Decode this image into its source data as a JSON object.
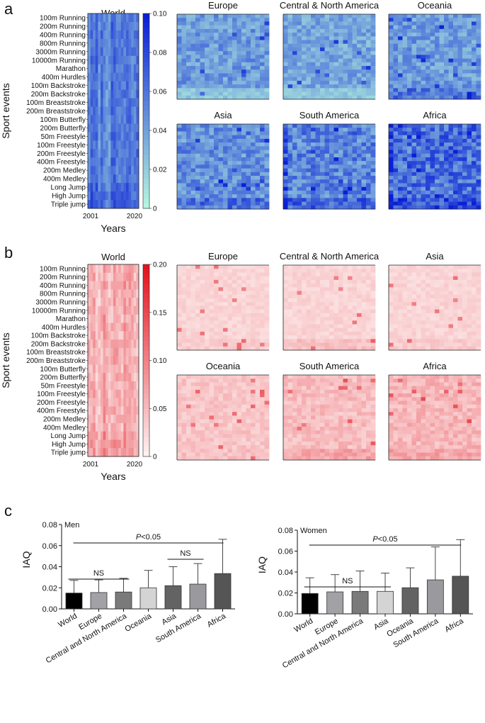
{
  "chart_data": [
    {
      "type": "heatmap",
      "panel": "a",
      "title": "World",
      "ylabel": "Sport events",
      "xlabel": "Years",
      "x_ticks": [
        "2001",
        "2020"
      ],
      "events": [
        "100m Running",
        "200m Running",
        "400m Running",
        "800m Running",
        "3000m Running",
        "10000m Running",
        "Marathon",
        "400m Hurdles",
        "100m Backstroke",
        "200m Backstroke",
        "100m Breaststroke",
        "200m Breaststroke",
        "100m Butterfly",
        "200m Butterfly",
        "50m Freestyle",
        "100m Freestyle",
        "200m Freestyle",
        "400m Freestyle",
        "200m Medley",
        "400m Medley",
        "Long Jump",
        "High Jump",
        "Triple jump"
      ],
      "colorbar_ticks": [
        "0.10",
        "0.08",
        "0.06",
        "0.04",
        "0.02",
        "0"
      ],
      "colorbar_range": [
        0,
        0.1
      ],
      "low_color": "#b5f5df",
      "high_color": "#0b1fd6",
      "regions": [
        {
          "name": "Europe",
          "level": 0.4,
          "bottom_level": 0.2
        },
        {
          "name": "Central & North America",
          "level": 0.35,
          "bottom_level": 0.2
        },
        {
          "name": "Oceania",
          "level": 0.4,
          "bottom_level": 0.55
        },
        {
          "name": "Asia",
          "level": 0.45,
          "bottom_level": 0.55
        },
        {
          "name": "South America",
          "level": 0.5,
          "bottom_level": 0.6
        },
        {
          "name": "Africa",
          "level": 0.6,
          "bottom_level": 0.7
        }
      ]
    },
    {
      "type": "heatmap",
      "panel": "b",
      "title": "World",
      "ylabel": "Sport events",
      "xlabel": "Years",
      "x_ticks": [
        "2001",
        "2020"
      ],
      "events": [
        "100m Running",
        "200m Running",
        "400m Running",
        "800m Running",
        "3000m Running",
        "10000m Running",
        "Marathon",
        "400m Hurdles",
        "100m Backstroke",
        "200m Backstroke",
        "100m Breaststroke",
        "200m Breaststroke",
        "100m Butterfly",
        "200m Butterfly",
        "50m Freestyle",
        "100m Freestyle",
        "200m Freestyle",
        "400m Freestyle",
        "200m Medley",
        "400m Medley",
        "Long Jump",
        "High Jump",
        "Triple jump"
      ],
      "colorbar_ticks": [
        "0.20",
        "0.15",
        "0.10",
        "0.05",
        "0"
      ],
      "colorbar_range": [
        0,
        0.2
      ],
      "low_color": "#fdf0f0",
      "high_color": "#e3141e",
      "regions": [
        {
          "name": "Europe",
          "level": 0.12,
          "bottom_level": 0.15
        },
        {
          "name": "Central & North America",
          "level": 0.12,
          "bottom_level": 0.2
        },
        {
          "name": "Asia",
          "level": 0.12,
          "bottom_level": 0.15
        },
        {
          "name": "Oceania",
          "level": 0.18,
          "bottom_level": 0.2
        },
        {
          "name": "South America",
          "level": 0.22,
          "bottom_level": 0.3
        },
        {
          "name": "Africa",
          "level": 0.25,
          "bottom_level": 0.3
        }
      ]
    },
    {
      "type": "bar",
      "panel": "c",
      "title": "Men",
      "ylabel": "IAQ",
      "ylim": [
        0,
        0.08
      ],
      "yticks": [
        "0.08",
        "0.06",
        "0.04",
        "0.02",
        "0.00"
      ],
      "categories": [
        "World",
        "Europe",
        "Central and North America",
        "Oceania",
        "Asia",
        "South America",
        "Africa"
      ],
      "values": [
        0.015,
        0.0155,
        0.016,
        0.02,
        0.022,
        0.0235,
        0.0335
      ],
      "errors": [
        0.012,
        0.012,
        0.013,
        0.0165,
        0.018,
        0.0195,
        0.0325
      ],
      "colors": [
        "#000000",
        "#a2a2a6",
        "#7a7a7a",
        "#d4d4d4",
        "#636363",
        "#9a9a9e",
        "#555555"
      ],
      "annotations": {
        "significance": "P<0.05",
        "ns_labels": [
          "NS",
          "NS"
        ]
      }
    },
    {
      "type": "bar",
      "panel": "c",
      "title": "Women",
      "ylabel": "IAQ",
      "ylim": [
        0,
        0.08
      ],
      "yticks": [
        "0.08",
        "0.06",
        "0.04",
        "0.02",
        "0.00"
      ],
      "categories": [
        "World",
        "Europe",
        "Central and North America",
        "Asia",
        "Oceania",
        "South America",
        "Africa"
      ],
      "values": [
        0.0195,
        0.021,
        0.0215,
        0.0215,
        0.025,
        0.0325,
        0.036
      ],
      "errors": [
        0.015,
        0.0165,
        0.0195,
        0.0175,
        0.019,
        0.0315,
        0.035
      ],
      "colors": [
        "#000000",
        "#a2a2a6",
        "#7a7a7a",
        "#d4d4d4",
        "#636363",
        "#9a9a9e",
        "#555555"
      ],
      "annotations": {
        "significance": "P<0.05",
        "ns_labels": [
          "NS"
        ]
      }
    }
  ]
}
